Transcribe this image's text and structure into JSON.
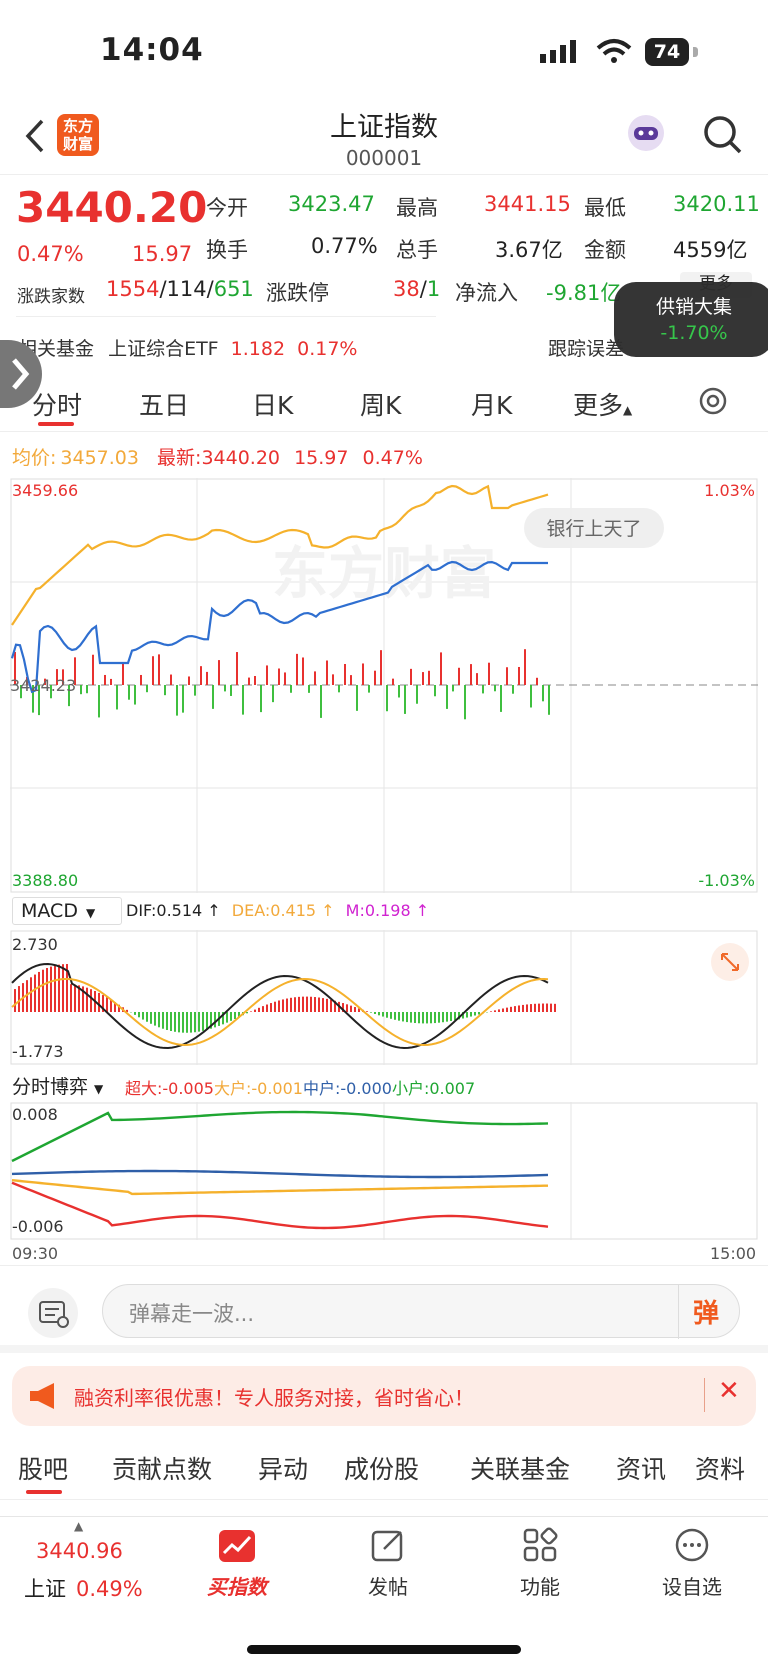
{
  "status": {
    "time": "14:04",
    "battery": "74"
  },
  "header": {
    "title": "上证指数",
    "code": "000001"
  },
  "quote": {
    "price": "3440.20",
    "pct": "0.47%",
    "chg": "15.97",
    "open_label": "今开",
    "open": "3423.47",
    "high_label": "最高",
    "high": "3441.15",
    "low_label": "最低",
    "low": "3420.11",
    "turnover_label": "换手",
    "turnover": "0.77%",
    "vol_label": "总手",
    "vol": "3.67亿",
    "amount_label": "金额",
    "amount": "4559亿",
    "breadth_label": "涨跌家数",
    "up": "1554",
    "flat": "114",
    "down": "651",
    "limit_label": "涨跌停",
    "limit_up": "38",
    "limit_down": "1",
    "inflow_label": "净流入",
    "inflow": "-9.81亿",
    "more_label": "更多"
  },
  "fund": {
    "label": "相关基金",
    "name": "上证综合ETF",
    "price": "1.182",
    "pct": "0.17%",
    "track": "跟踪误差"
  },
  "popup": {
    "name": "供销大集",
    "pct": "-1.70%"
  },
  "tabs": [
    "分时",
    "五日",
    "日K",
    "周K",
    "月K",
    "更多"
  ],
  "legend": {
    "avg_label": "均价:",
    "avg": "3457.03",
    "last_label": "最新:",
    "last": "3440.20",
    "chg": "15.97",
    "pct": "0.47%"
  },
  "chart_data": {
    "type": "line",
    "y_max": "3459.66",
    "y_mid": "3424.23",
    "y_min": "3388.80",
    "pct_max": "1.03%",
    "pct_min": "-1.03%",
    "danmu": "银行上天了",
    "watermark": "东方财富",
    "x_start": "09:30",
    "x_end": "15:00"
  },
  "macd": {
    "label": "MACD",
    "dif": "DIF:0.514 ↑",
    "dea": "DEA:0.415 ↑",
    "m": "M:0.198 ↑",
    "max": "2.730",
    "min": "-1.773"
  },
  "flow": {
    "label": "分时博弈",
    "super": "超大:-0.005",
    "large": "大户:-0.001",
    "mid": "中户:-0.000",
    "small": "小户:0.007",
    "max": "0.008",
    "min": "-0.006"
  },
  "comment": {
    "placeholder": "弹幕走一波...",
    "danmu_btn": "弹"
  },
  "ad": {
    "text": "融资利率很优惠！专人服务对接，省时省心！"
  },
  "subtabs": [
    "股吧",
    "贡献点数",
    "异动",
    "成份股",
    "关联基金",
    "资讯",
    "资料"
  ],
  "bottom": {
    "price": "3440.96",
    "name": "上证",
    "pct": "0.49%",
    "buy": "买指数",
    "post": "发帖",
    "func": "功能",
    "fav": "设自选"
  }
}
